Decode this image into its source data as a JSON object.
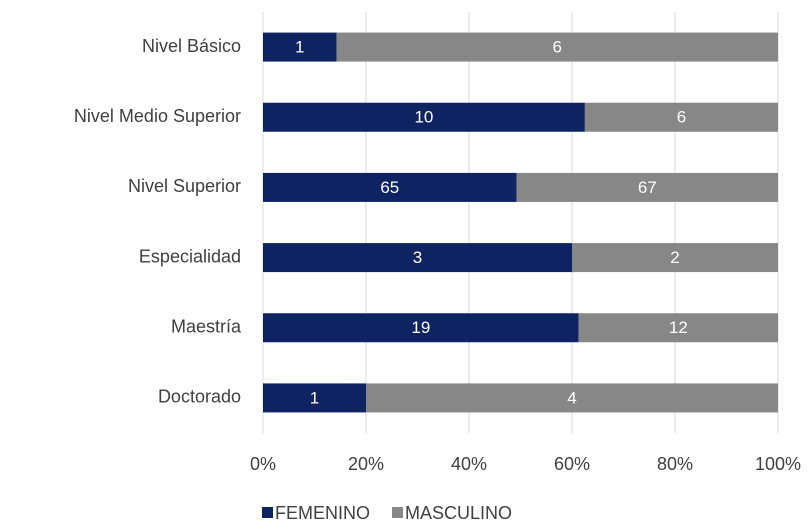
{
  "chart_data": {
    "type": "bar",
    "orientation": "horizontal",
    "stacking": "percent",
    "categories": [
      "Nivel Básico",
      "Nivel Medio Superior",
      "Nivel Superior",
      "Especialidad",
      "Maestría",
      "Doctorado"
    ],
    "series": [
      {
        "name": "FEMENINO",
        "color": "#0e2361",
        "values": [
          1,
          10,
          65,
          3,
          19,
          1
        ]
      },
      {
        "name": "MASCULINO",
        "color": "#878787",
        "values": [
          6,
          6,
          67,
          2,
          12,
          4
        ]
      }
    ],
    "xlim": [
      0,
      100
    ],
    "xticks": [
      {
        "value": 0,
        "label": "0%"
      },
      {
        "value": 20,
        "label": "20%"
      },
      {
        "value": 40,
        "label": "40%"
      },
      {
        "value": 60,
        "label": "60%"
      },
      {
        "value": 80,
        "label": "80%"
      },
      {
        "value": 100,
        "label": "100%"
      }
    ],
    "grid": true,
    "legend": "bottom"
  }
}
